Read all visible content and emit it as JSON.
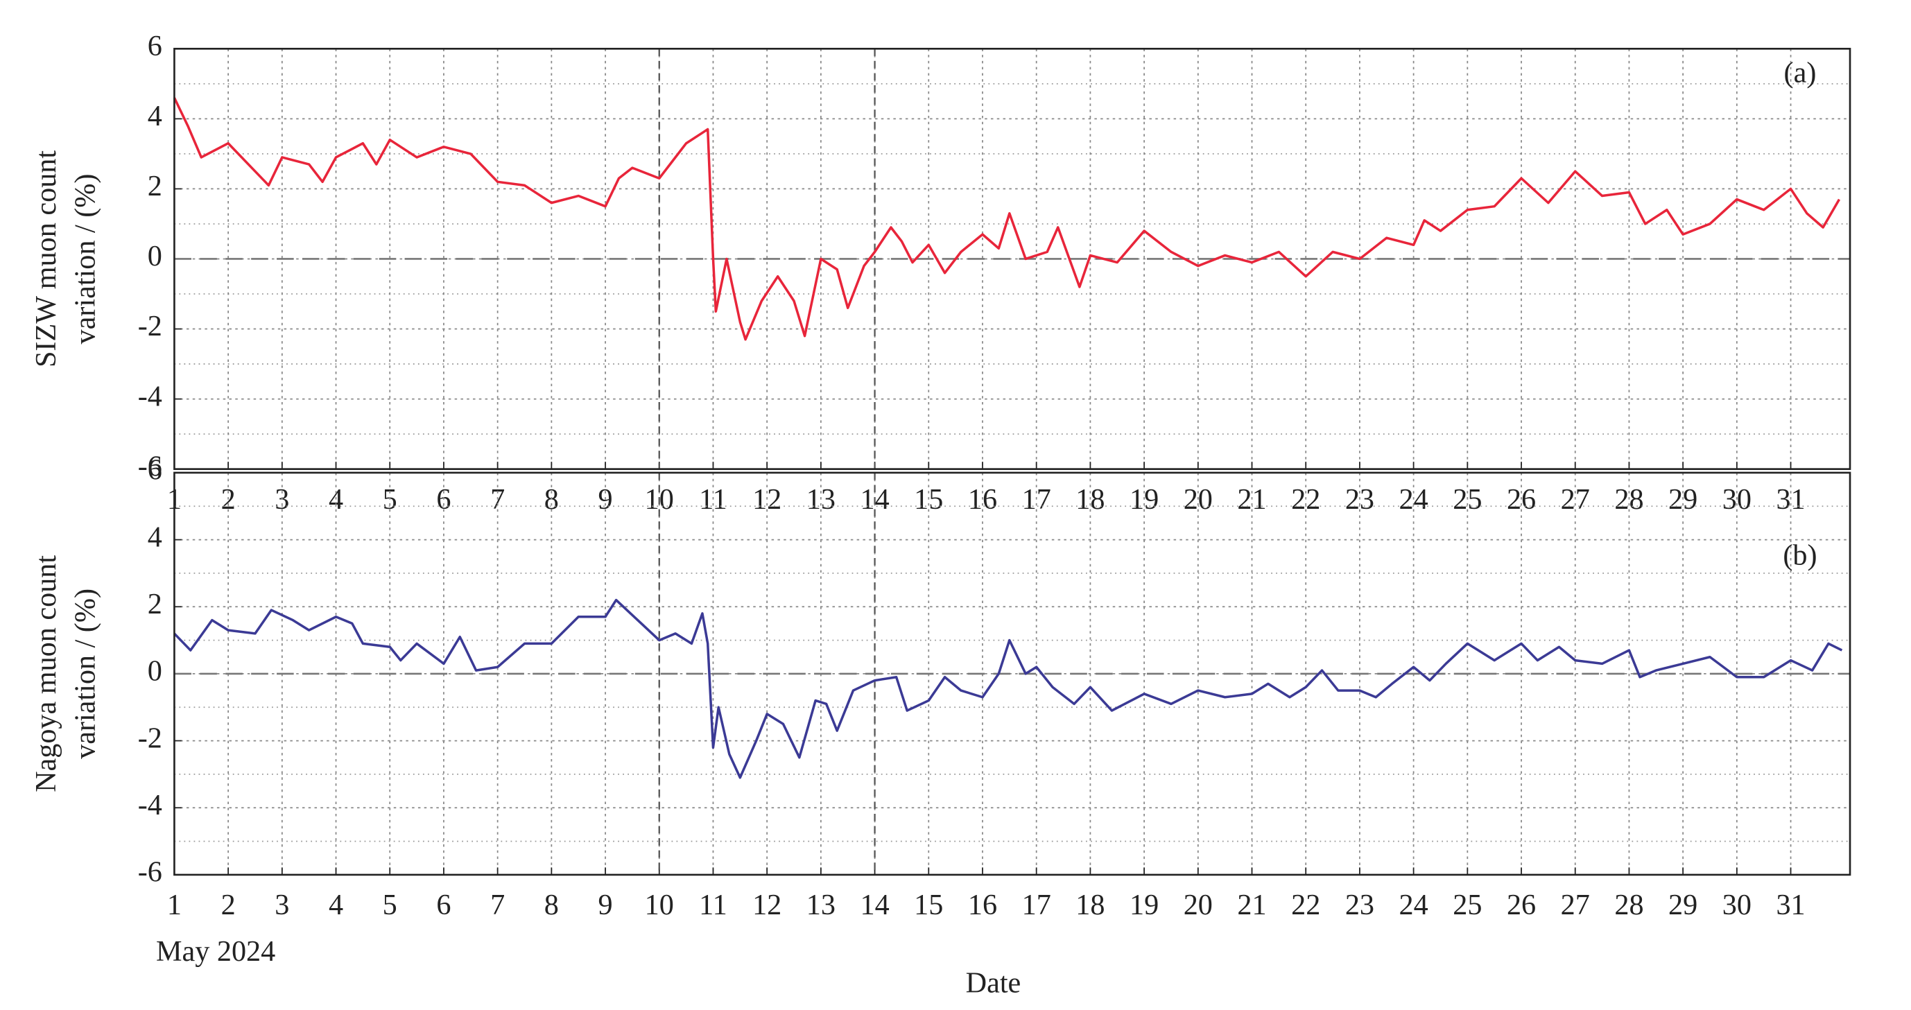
{
  "chart_data": [
    {
      "type": "line",
      "annotation": "(a)",
      "ylabel": [
        "SIZW muon count",
        "variation / (%)"
      ],
      "xlim": [
        1,
        32.1
      ],
      "xticks": [
        1,
        2,
        3,
        4,
        5,
        6,
        7,
        8,
        9,
        10,
        11,
        12,
        13,
        14,
        15,
        16,
        17,
        18,
        19,
        20,
        21,
        22,
        23,
        24,
        25,
        26,
        27,
        28,
        29,
        30,
        31
      ],
      "ylim": [
        -6,
        6
      ],
      "yticks": [
        -6,
        -4,
        -2,
        0,
        2,
        4,
        6
      ],
      "yminorticks": [
        -5,
        -3,
        -1,
        1,
        3,
        5
      ],
      "grid": true,
      "vlines": [
        10,
        14
      ],
      "hline": 0,
      "x": [
        1.0,
        1.25,
        1.5,
        2.0,
        2.5,
        2.75,
        3.0,
        3.5,
        3.75,
        4.0,
        4.5,
        4.75,
        5.0,
        5.5,
        6.0,
        6.5,
        7.0,
        7.5,
        8.0,
        8.5,
        9.0,
        9.25,
        9.5,
        10.0,
        10.25,
        10.5,
        10.9,
        11.0,
        11.05,
        11.25,
        11.5,
        11.6,
        11.9,
        12.2,
        12.5,
        12.7,
        13.0,
        13.3,
        13.5,
        13.8,
        14.0,
        14.3,
        14.5,
        14.7,
        15.0,
        15.3,
        15.6,
        16.0,
        16.3,
        16.5,
        16.8,
        17.2,
        17.4,
        17.8,
        18.0,
        18.5,
        19.0,
        19.5,
        20.0,
        20.5,
        21.0,
        21.5,
        22.0,
        22.5,
        23.0,
        23.5,
        24.0,
        24.2,
        24.5,
        25.0,
        25.5,
        26.0,
        26.5,
        27.0,
        27.5,
        28.0,
        28.3,
        28.7,
        29.0,
        29.5,
        30.0,
        30.5,
        31.0,
        31.3,
        31.6,
        31.9
      ],
      "series": [
        {
          "name": "SIZW",
          "color": "#e8253a",
          "values": [
            4.6,
            3.8,
            2.9,
            3.3,
            2.5,
            2.1,
            2.9,
            2.7,
            2.2,
            2.9,
            3.3,
            2.7,
            3.4,
            2.9,
            3.2,
            3.0,
            2.2,
            2.1,
            1.6,
            1.8,
            1.5,
            2.3,
            2.6,
            2.3,
            2.8,
            3.3,
            3.7,
            0.0,
            -1.5,
            0.0,
            -1.8,
            -2.3,
            -1.2,
            -0.5,
            -1.2,
            -2.2,
            0.0,
            -0.3,
            -1.4,
            -0.2,
            0.2,
            0.9,
            0.5,
            -0.1,
            0.4,
            -0.4,
            0.2,
            0.7,
            0.3,
            1.3,
            0.0,
            0.2,
            0.9,
            -0.8,
            0.1,
            -0.1,
            0.8,
            0.2,
            -0.2,
            0.1,
            -0.1,
            0.2,
            -0.5,
            0.2,
            0.0,
            0.6,
            0.4,
            1.1,
            0.8,
            1.4,
            1.5,
            2.3,
            1.6,
            2.5,
            1.8,
            1.9,
            1.0,
            1.4,
            0.7,
            1.0,
            1.7,
            1.4,
            2.0,
            1.3,
            0.9,
            1.7
          ]
        }
      ]
    },
    {
      "type": "line",
      "annotation": "(b)",
      "ylabel": [
        "Nagoya muon count",
        "variation / (%)"
      ],
      "xlim": [
        1,
        32.1
      ],
      "xticks": [
        1,
        2,
        3,
        4,
        5,
        6,
        7,
        8,
        9,
        10,
        11,
        12,
        13,
        14,
        15,
        16,
        17,
        18,
        19,
        20,
        21,
        22,
        23,
        24,
        25,
        26,
        27,
        28,
        29,
        30,
        31
      ],
      "ylim": [
        -6,
        6
      ],
      "yticks": [
        -6,
        -4,
        -2,
        0,
        2,
        4,
        6
      ],
      "yminorticks": [
        -5,
        -3,
        -1,
        1,
        3,
        5
      ],
      "grid": true,
      "vlines": [
        10,
        14
      ],
      "hline": 0,
      "xsublabel": "May 2024",
      "xlabel": "Date",
      "x": [
        1.0,
        1.3,
        1.7,
        2.0,
        2.5,
        2.8,
        3.2,
        3.5,
        4.0,
        4.3,
        4.5,
        5.0,
        5.2,
        5.5,
        6.0,
        6.3,
        6.6,
        7.0,
        7.5,
        8.0,
        8.5,
        9.0,
        9.2,
        9.6,
        10.0,
        10.3,
        10.6,
        10.8,
        10.9,
        11.0,
        11.1,
        11.3,
        11.5,
        11.8,
        12.0,
        12.3,
        12.6,
        12.9,
        13.1,
        13.3,
        13.6,
        14.0,
        14.4,
        14.6,
        15.0,
        15.3,
        15.6,
        16.0,
        16.3,
        16.5,
        16.8,
        17.0,
        17.3,
        17.7,
        18.0,
        18.4,
        19.0,
        19.5,
        20.0,
        20.5,
        21.0,
        21.3,
        21.7,
        22.0,
        22.3,
        22.6,
        23.0,
        23.3,
        23.6,
        24.0,
        24.3,
        24.6,
        25.0,
        25.5,
        26.0,
        26.3,
        26.7,
        27.0,
        27.5,
        28.0,
        28.2,
        28.5,
        29.0,
        29.5,
        30.0,
        30.5,
        31.0,
        31.4,
        31.7,
        31.95
      ],
      "series": [
        {
          "name": "Nagoya",
          "color": "#3b3a95",
          "values": [
            1.2,
            0.7,
            1.6,
            1.3,
            1.2,
            1.9,
            1.6,
            1.3,
            1.7,
            1.5,
            0.9,
            0.8,
            0.4,
            0.9,
            0.3,
            1.1,
            0.1,
            0.2,
            0.9,
            0.9,
            1.7,
            1.7,
            2.2,
            1.6,
            1.0,
            1.2,
            0.9,
            1.8,
            0.9,
            -2.2,
            -1.0,
            -2.4,
            -3.1,
            -2.0,
            -1.2,
            -1.5,
            -2.5,
            -0.8,
            -0.9,
            -1.7,
            -0.5,
            -0.2,
            -0.1,
            -1.1,
            -0.8,
            -0.1,
            -0.5,
            -0.7,
            0.0,
            1.0,
            0.0,
            0.2,
            -0.4,
            -0.9,
            -0.4,
            -1.1,
            -0.6,
            -0.9,
            -0.5,
            -0.7,
            -0.6,
            -0.3,
            -0.7,
            -0.4,
            0.1,
            -0.5,
            -0.5,
            -0.7,
            -0.3,
            0.2,
            -0.2,
            0.3,
            0.9,
            0.4,
            0.9,
            0.4,
            0.8,
            0.4,
            0.3,
            0.7,
            -0.1,
            0.1,
            0.3,
            0.5,
            -0.1,
            -0.1,
            0.4,
            0.1,
            0.9,
            0.7
          ]
        }
      ]
    }
  ]
}
